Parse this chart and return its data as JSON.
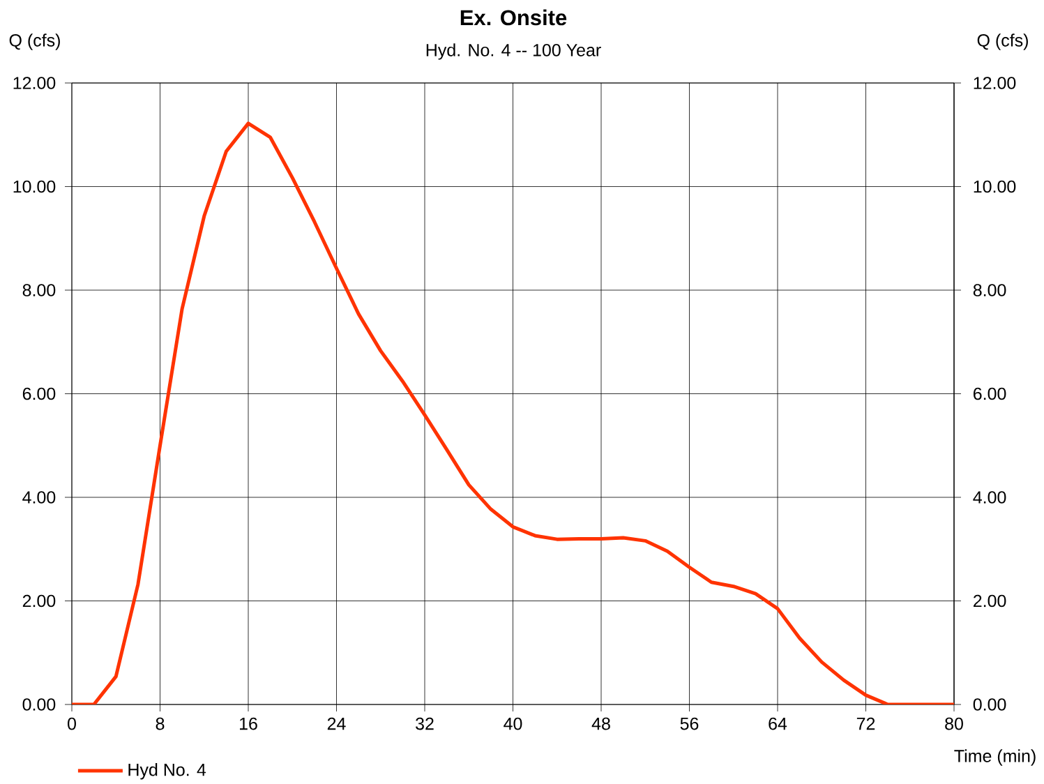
{
  "chart_data": {
    "type": "line",
    "title": "Ex. Onsite",
    "subtitle": "Hyd. No. 4 -- 100 Year",
    "xlabel": "Time (min)",
    "ylabel": "Q (cfs)",
    "y2label": "Q (cfs)",
    "x": [
      0,
      2,
      4,
      6,
      8,
      10,
      12,
      14,
      16,
      18,
      20,
      22,
      24,
      26,
      28,
      30,
      32,
      34,
      36,
      38,
      40,
      42,
      44,
      46,
      48,
      50,
      52,
      54,
      56,
      58,
      60,
      62,
      64,
      66,
      68,
      70,
      72,
      74,
      76,
      78,
      80
    ],
    "series": [
      {
        "name": "Hyd No. 4",
        "color": "#ff3300",
        "values": [
          0,
          0,
          0.54,
          2.32,
          5.0,
          7.64,
          9.43,
          10.68,
          11.22,
          10.95,
          10.17,
          9.32,
          8.42,
          7.54,
          6.83,
          6.24,
          5.59,
          4.92,
          4.24,
          3.77,
          3.43,
          3.26,
          3.19,
          3.2,
          3.2,
          3.22,
          3.16,
          2.96,
          2.65,
          2.36,
          2.28,
          2.14,
          1.85,
          1.28,
          0.82,
          0.47,
          0.18,
          0,
          0,
          0,
          0
        ]
      }
    ],
    "xlim": [
      0,
      80
    ],
    "xticks": [
      0,
      8,
      16,
      24,
      32,
      40,
      48,
      56,
      64,
      72,
      80
    ],
    "ylim": [
      0,
      12
    ],
    "yticks": [
      {
        "value": 0,
        "label": "0.00"
      },
      {
        "value": 2,
        "label": "2.00"
      },
      {
        "value": 4,
        "label": "4.00"
      },
      {
        "value": 6,
        "label": "6.00"
      },
      {
        "value": 8,
        "label": "8.00"
      },
      {
        "value": 10,
        "label": "10.00"
      },
      {
        "value": 12,
        "label": "12.00"
      }
    ],
    "y2lim": [
      0,
      12
    ],
    "y2ticks": [
      {
        "value": 0,
        "label": "0.00"
      },
      {
        "value": 2,
        "label": "2.00"
      },
      {
        "value": 4,
        "label": "4.00"
      },
      {
        "value": 6,
        "label": "6.00"
      },
      {
        "value": 8,
        "label": "8.00"
      },
      {
        "value": 10,
        "label": "10.00"
      },
      {
        "value": 12,
        "label": "12.00"
      }
    ],
    "grid": true,
    "legend": "bottom left",
    "marker": "none",
    "line_style": "solid"
  }
}
